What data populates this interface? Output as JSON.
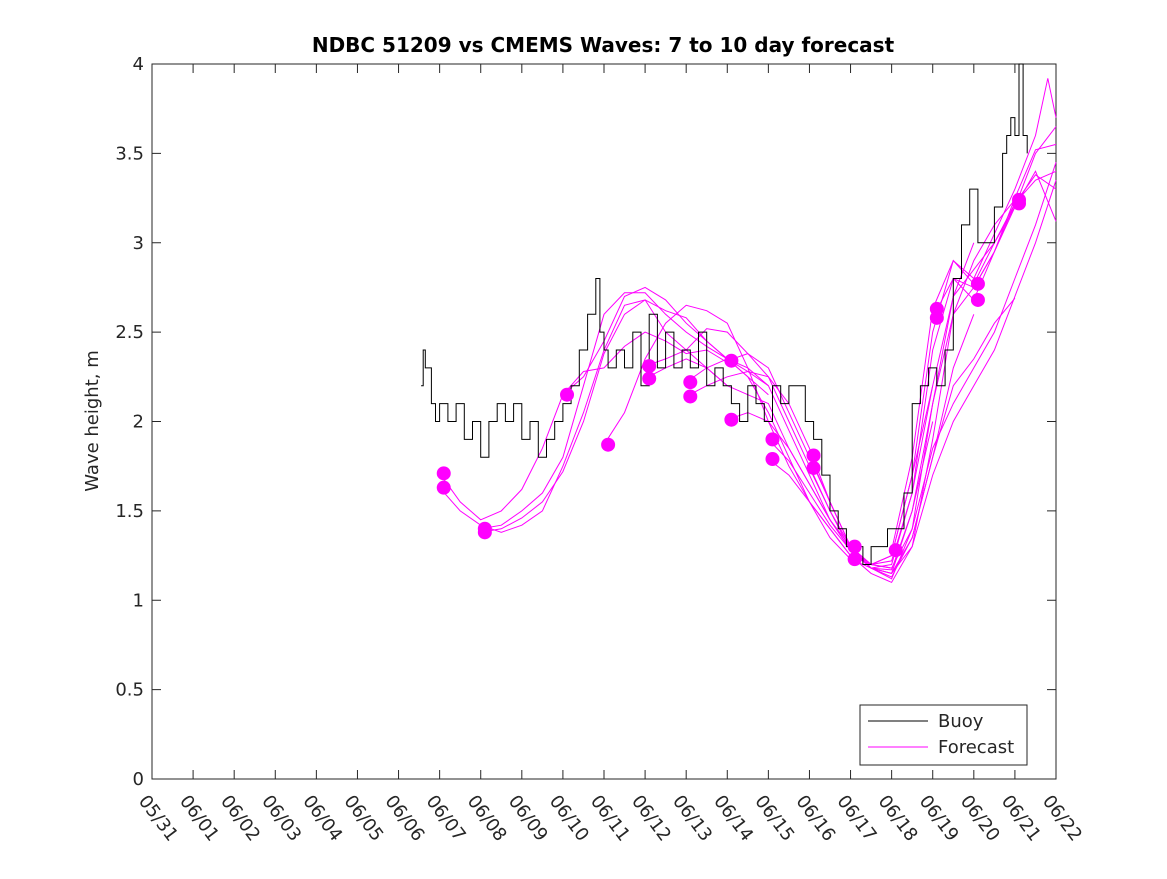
{
  "chart_data": {
    "type": "line",
    "title": "NDBC 51209 vs CMEMS Waves: 7 to 10 day forecast",
    "ylabel": "Wave height, m",
    "xlabel": "",
    "xlim_day": [
      0,
      22
    ],
    "ylim": [
      0,
      4
    ],
    "xticks": [
      "05/31",
      "06/01",
      "06/02",
      "06/03",
      "06/04",
      "06/05",
      "06/06",
      "06/07",
      "06/08",
      "06/09",
      "06/10",
      "06/11",
      "06/12",
      "06/13",
      "06/14",
      "06/15",
      "06/16",
      "06/17",
      "06/18",
      "06/19",
      "06/20",
      "06/21",
      "06/22"
    ],
    "yticks": [
      "0",
      "0.5",
      "1",
      "1.5",
      "2",
      "2.5",
      "3",
      "3.5",
      "4"
    ],
    "legend": {
      "position": "bottom-right",
      "entries": [
        "Buoy",
        "Forecast"
      ]
    },
    "colors": {
      "buoy": "#000000",
      "forecast": "#ff00ff",
      "axes": "#262626"
    },
    "series": [
      {
        "name": "Buoy",
        "x_day": [
          6.55,
          6.6,
          6.65,
          6.7,
          6.8,
          6.9,
          7.0,
          7.2,
          7.4,
          7.6,
          7.8,
          8.0,
          8.2,
          8.4,
          8.6,
          8.8,
          9.0,
          9.2,
          9.4,
          9.6,
          9.8,
          10.0,
          10.2,
          10.4,
          10.6,
          10.8,
          10.9,
          11.0,
          11.1,
          11.3,
          11.5,
          11.7,
          11.9,
          12.1,
          12.3,
          12.5,
          12.7,
          12.9,
          13.1,
          13.3,
          13.5,
          13.7,
          13.9,
          14.1,
          14.3,
          14.5,
          14.7,
          14.9,
          15.1,
          15.3,
          15.5,
          15.7,
          15.9,
          16.1,
          16.3,
          16.5,
          16.7,
          16.9,
          17.1,
          17.3,
          17.5,
          17.7,
          17.9,
          18.1,
          18.3,
          18.5,
          18.7,
          18.9,
          19.1,
          19.3,
          19.5,
          19.7,
          19.9,
          20.1,
          20.3,
          20.5,
          20.7,
          20.8,
          20.9,
          21.0,
          21.1,
          21.2,
          21.3
        ],
        "y": [
          2.2,
          2.4,
          2.3,
          2.3,
          2.1,
          2.0,
          2.1,
          2.0,
          2.1,
          1.9,
          2.0,
          1.8,
          2.0,
          2.1,
          2.0,
          2.1,
          1.9,
          2.0,
          1.8,
          1.9,
          2.0,
          2.1,
          2.2,
          2.4,
          2.6,
          2.8,
          2.5,
          2.4,
          2.3,
          2.4,
          2.3,
          2.5,
          2.2,
          2.6,
          2.3,
          2.5,
          2.3,
          2.4,
          2.3,
          2.5,
          2.2,
          2.3,
          2.2,
          2.1,
          2.0,
          2.2,
          2.1,
          2.0,
          2.2,
          2.1,
          2.2,
          2.2,
          2.0,
          1.9,
          1.7,
          1.5,
          1.4,
          1.3,
          1.3,
          1.2,
          1.3,
          1.3,
          1.4,
          1.4,
          1.6,
          2.1,
          2.2,
          2.3,
          2.2,
          2.4,
          2.8,
          3.1,
          3.3,
          3.0,
          3.0,
          3.2,
          3.5,
          3.6,
          3.7,
          3.6,
          4.0,
          3.6,
          3.5
        ]
      },
      {
        "name": "Forecast",
        "runs": [
          {
            "x_day": [
              7.0,
              7.5,
              8.0,
              8.5,
              9.0,
              9.5,
              10.0,
              10.5,
              11.0,
              11.5,
              12.0,
              12.5,
              13.0,
              13.5,
              14.0
            ],
            "y": [
              1.71,
              1.55,
              1.45,
              1.5,
              1.62,
              1.85,
              2.15,
              2.28,
              2.3,
              2.42,
              2.5,
              2.45,
              2.38,
              2.4,
              2.33
            ]
          },
          {
            "x_day": [
              7.0,
              7.5,
              8.0,
              8.5,
              9.0,
              9.5,
              10.0,
              10.5,
              11.0,
              11.5,
              12.0,
              12.5,
              13.0,
              13.5,
              14.0
            ],
            "y": [
              1.63,
              1.5,
              1.42,
              1.38,
              1.42,
              1.5,
              1.75,
              2.05,
              2.4,
              2.65,
              2.68,
              2.5,
              2.4,
              2.3,
              2.2
            ]
          },
          {
            "x_day": [
              8.0,
              8.5,
              9.0,
              9.5,
              10.0,
              10.5,
              11.0,
              11.5,
              12.0,
              12.5,
              13.0,
              13.5,
              14.0,
              14.5,
              15.0
            ],
            "y": [
              1.4,
              1.42,
              1.5,
              1.6,
              1.8,
              2.2,
              2.6,
              2.72,
              2.72,
              2.6,
              2.5,
              2.42,
              2.35,
              2.28,
              2.2
            ]
          },
          {
            "x_day": [
              8.0,
              8.5,
              9.0,
              9.5,
              10.0,
              10.5,
              11.0,
              11.5,
              12.0,
              12.5,
              13.0,
              13.5,
              14.0,
              14.5,
              15.0
            ],
            "y": [
              1.38,
              1.4,
              1.46,
              1.55,
              1.72,
              2.0,
              2.38,
              2.6,
              2.68,
              2.62,
              2.58,
              2.45,
              2.35,
              2.25,
              2.15
            ]
          },
          {
            "x_day": [
              10.0,
              10.5,
              11.0,
              11.5,
              12.0,
              12.5,
              13.0,
              13.5,
              14.0,
              14.5,
              15.0,
              15.5,
              16.0,
              16.5,
              17.0
            ],
            "y": [
              2.15,
              2.25,
              2.45,
              2.7,
              2.75,
              2.68,
              2.55,
              2.45,
              2.35,
              2.25,
              2.05,
              1.8,
              1.55,
              1.35,
              1.23
            ]
          },
          {
            "x_day": [
              11.0,
              11.5,
              12.0,
              12.5,
              13.0,
              13.5,
              14.0,
              14.5,
              15.0,
              15.5,
              16.0,
              16.5,
              17.0,
              17.5,
              18.0
            ],
            "y": [
              1.87,
              2.05,
              2.35,
              2.55,
              2.65,
              2.62,
              2.55,
              2.3,
              2.0,
              1.75,
              1.55,
              1.4,
              1.25,
              1.2,
              1.18
            ]
          },
          {
            "x_day": [
              12.0,
              12.5,
              13.0,
              13.5,
              14.0,
              14.5,
              15.0,
              15.5,
              16.0,
              16.5,
              17.0,
              17.5,
              18.0,
              18.5,
              19.0
            ],
            "y": [
              2.31,
              2.35,
              2.4,
              2.52,
              2.5,
              2.38,
              2.3,
              2.05,
              1.8,
              1.55,
              1.3,
              1.2,
              1.25,
              1.7,
              2.2
            ]
          },
          {
            "x_day": [
              12.0,
              12.5,
              13.0,
              13.5,
              14.0,
              14.5,
              15.0,
              15.5,
              16.0,
              16.5,
              17.0,
              17.5,
              18.0,
              18.5,
              19.0
            ],
            "y": [
              2.24,
              2.3,
              2.35,
              2.3,
              2.2,
              2.15,
              2.1,
              1.85,
              1.65,
              1.45,
              1.3,
              1.18,
              1.15,
              1.5,
              2.0
            ]
          },
          {
            "x_day": [
              13.0,
              13.5,
              14.0,
              14.5,
              15.0,
              15.5,
              16.0,
              16.5,
              17.0,
              17.5,
              18.0,
              18.5,
              19.0,
              19.5,
              20.0
            ],
            "y": [
              2.22,
              2.3,
              2.35,
              2.3,
              2.2,
              1.95,
              1.7,
              1.45,
              1.28,
              1.2,
              1.18,
              1.4,
              2.1,
              2.7,
              3.0
            ]
          },
          {
            "x_day": [
              13.0,
              13.5,
              14.0,
              14.5,
              15.0,
              15.5,
              16.0,
              16.5,
              17.0,
              17.5,
              18.0,
              18.5,
              19.0,
              19.5,
              20.0
            ],
            "y": [
              2.14,
              2.2,
              2.25,
              2.28,
              2.25,
              2.1,
              1.85,
              1.55,
              1.3,
              1.18,
              1.15,
              1.35,
              1.8,
              2.3,
              2.6
            ]
          },
          {
            "x_day": [
              14.0,
              14.5,
              15.0,
              15.5,
              16.0,
              16.5,
              17.0,
              17.5,
              18.0,
              18.5,
              19.0,
              19.5,
              20.0,
              20.5,
              21.0
            ],
            "y": [
              2.34,
              2.38,
              2.25,
              2.0,
              1.75,
              1.5,
              1.3,
              1.18,
              1.15,
              1.3,
              1.9,
              2.6,
              2.9,
              3.1,
              3.24
            ]
          },
          {
            "x_day": [
              14.0,
              14.5,
              15.0,
              15.5,
              16.0,
              16.5,
              17.0,
              17.5,
              18.0,
              18.5,
              19.0,
              19.5,
              20.0,
              20.5,
              21.0
            ],
            "y": [
              2.01,
              2.05,
              2.0,
              1.85,
              1.65,
              1.45,
              1.28,
              1.18,
              1.13,
              1.35,
              1.8,
              2.2,
              2.35,
              2.55,
              2.69
            ]
          },
          {
            "x_day": [
              15.0,
              15.5,
              16.0,
              16.5,
              17.0,
              17.5,
              18.0,
              18.5,
              19.0,
              19.5,
              20.0,
              20.5,
              21.0,
              21.5,
              22.0
            ],
            "y": [
              1.9,
              1.78,
              1.6,
              1.42,
              1.28,
              1.18,
              1.12,
              1.4,
              1.85,
              2.1,
              2.3,
              2.5,
              2.8,
              3.1,
              3.45
            ]
          },
          {
            "x_day": [
              15.0,
              15.5,
              16.0,
              16.5,
              17.0,
              17.5,
              18.0,
              18.5,
              19.0,
              19.5,
              20.0,
              20.5,
              21.0,
              21.5,
              22.0
            ],
            "y": [
              1.79,
              1.7,
              1.55,
              1.4,
              1.25,
              1.15,
              1.1,
              1.3,
              1.7,
              2.0,
              2.2,
              2.4,
              2.7,
              3.0,
              3.35
            ]
          },
          {
            "x_day": [
              16.0,
              16.5,
              17.0,
              17.5,
              18.0,
              18.5,
              19.0,
              19.5,
              20.0,
              20.5,
              21.0,
              21.5,
              22.0
            ],
            "y": [
              1.81,
              1.55,
              1.3,
              1.2,
              1.22,
              1.6,
              2.2,
              2.7,
              2.85,
              3.0,
              3.2,
              3.5,
              3.65
            ]
          },
          {
            "x_day": [
              16.0,
              16.5,
              17.0,
              17.5,
              18.0,
              18.5,
              19.0,
              19.5,
              20.0,
              20.5,
              21.0,
              21.5,
              22.0
            ],
            "y": [
              1.74,
              1.5,
              1.28,
              1.18,
              1.17,
              1.5,
              2.1,
              2.6,
              2.75,
              2.95,
              3.25,
              3.52,
              3.55
            ]
          },
          {
            "x_day": [
              17.0,
              17.5,
              18.0,
              18.5,
              19.0,
              19.5,
              20.0,
              20.5,
              21.0,
              21.5,
              21.8,
              22.0
            ],
            "y": [
              1.3,
              1.2,
              1.25,
              1.7,
              2.5,
              2.9,
              2.8,
              3.05,
              3.3,
              3.6,
              3.92,
              3.7
            ]
          },
          {
            "x_day": [
              17.0,
              17.5,
              18.0,
              18.5,
              19.0,
              19.5,
              20.0,
              20.5,
              21.0,
              21.5,
              22.0
            ],
            "y": [
              1.23,
              1.18,
              1.2,
              1.6,
              2.4,
              2.8,
              2.75,
              2.95,
              3.2,
              3.4,
              3.12
            ]
          },
          {
            "x_day": [
              18.0,
              18.5,
              19.0,
              19.5,
              20.0,
              20.5,
              21.0,
              21.5,
              22.0
            ],
            "y": [
              1.28,
              1.8,
              2.63,
              2.9,
              2.77,
              3.0,
              3.22,
              3.35,
              3.4
            ]
          },
          {
            "x_day": [
              19.0,
              19.5,
              20.0,
              20.5,
              21.0,
              21.5,
              22.0
            ],
            "y": [
              2.58,
              2.8,
              2.68,
              2.95,
              3.22,
              3.38,
              3.3
            ]
          }
        ]
      }
    ],
    "markers": [
      [
        7.1,
        1.71
      ],
      [
        7.1,
        1.63
      ],
      [
        8.1,
        1.4
      ],
      [
        8.1,
        1.38
      ],
      [
        10.1,
        2.15
      ],
      [
        11.1,
        1.87
      ],
      [
        12.1,
        2.31
      ],
      [
        12.1,
        2.24
      ],
      [
        13.1,
        2.22
      ],
      [
        13.1,
        2.14
      ],
      [
        14.1,
        2.34
      ],
      [
        14.1,
        2.01
      ],
      [
        15.1,
        1.9
      ],
      [
        15.1,
        1.79
      ],
      [
        16.1,
        1.81
      ],
      [
        16.1,
        1.74
      ],
      [
        17.1,
        1.3
      ],
      [
        17.1,
        1.23
      ],
      [
        18.1,
        1.28
      ],
      [
        19.1,
        2.63
      ],
      [
        19.1,
        2.58
      ],
      [
        20.1,
        2.77
      ],
      [
        20.1,
        2.68
      ],
      [
        21.1,
        3.24
      ],
      [
        21.1,
        3.22
      ]
    ]
  }
}
